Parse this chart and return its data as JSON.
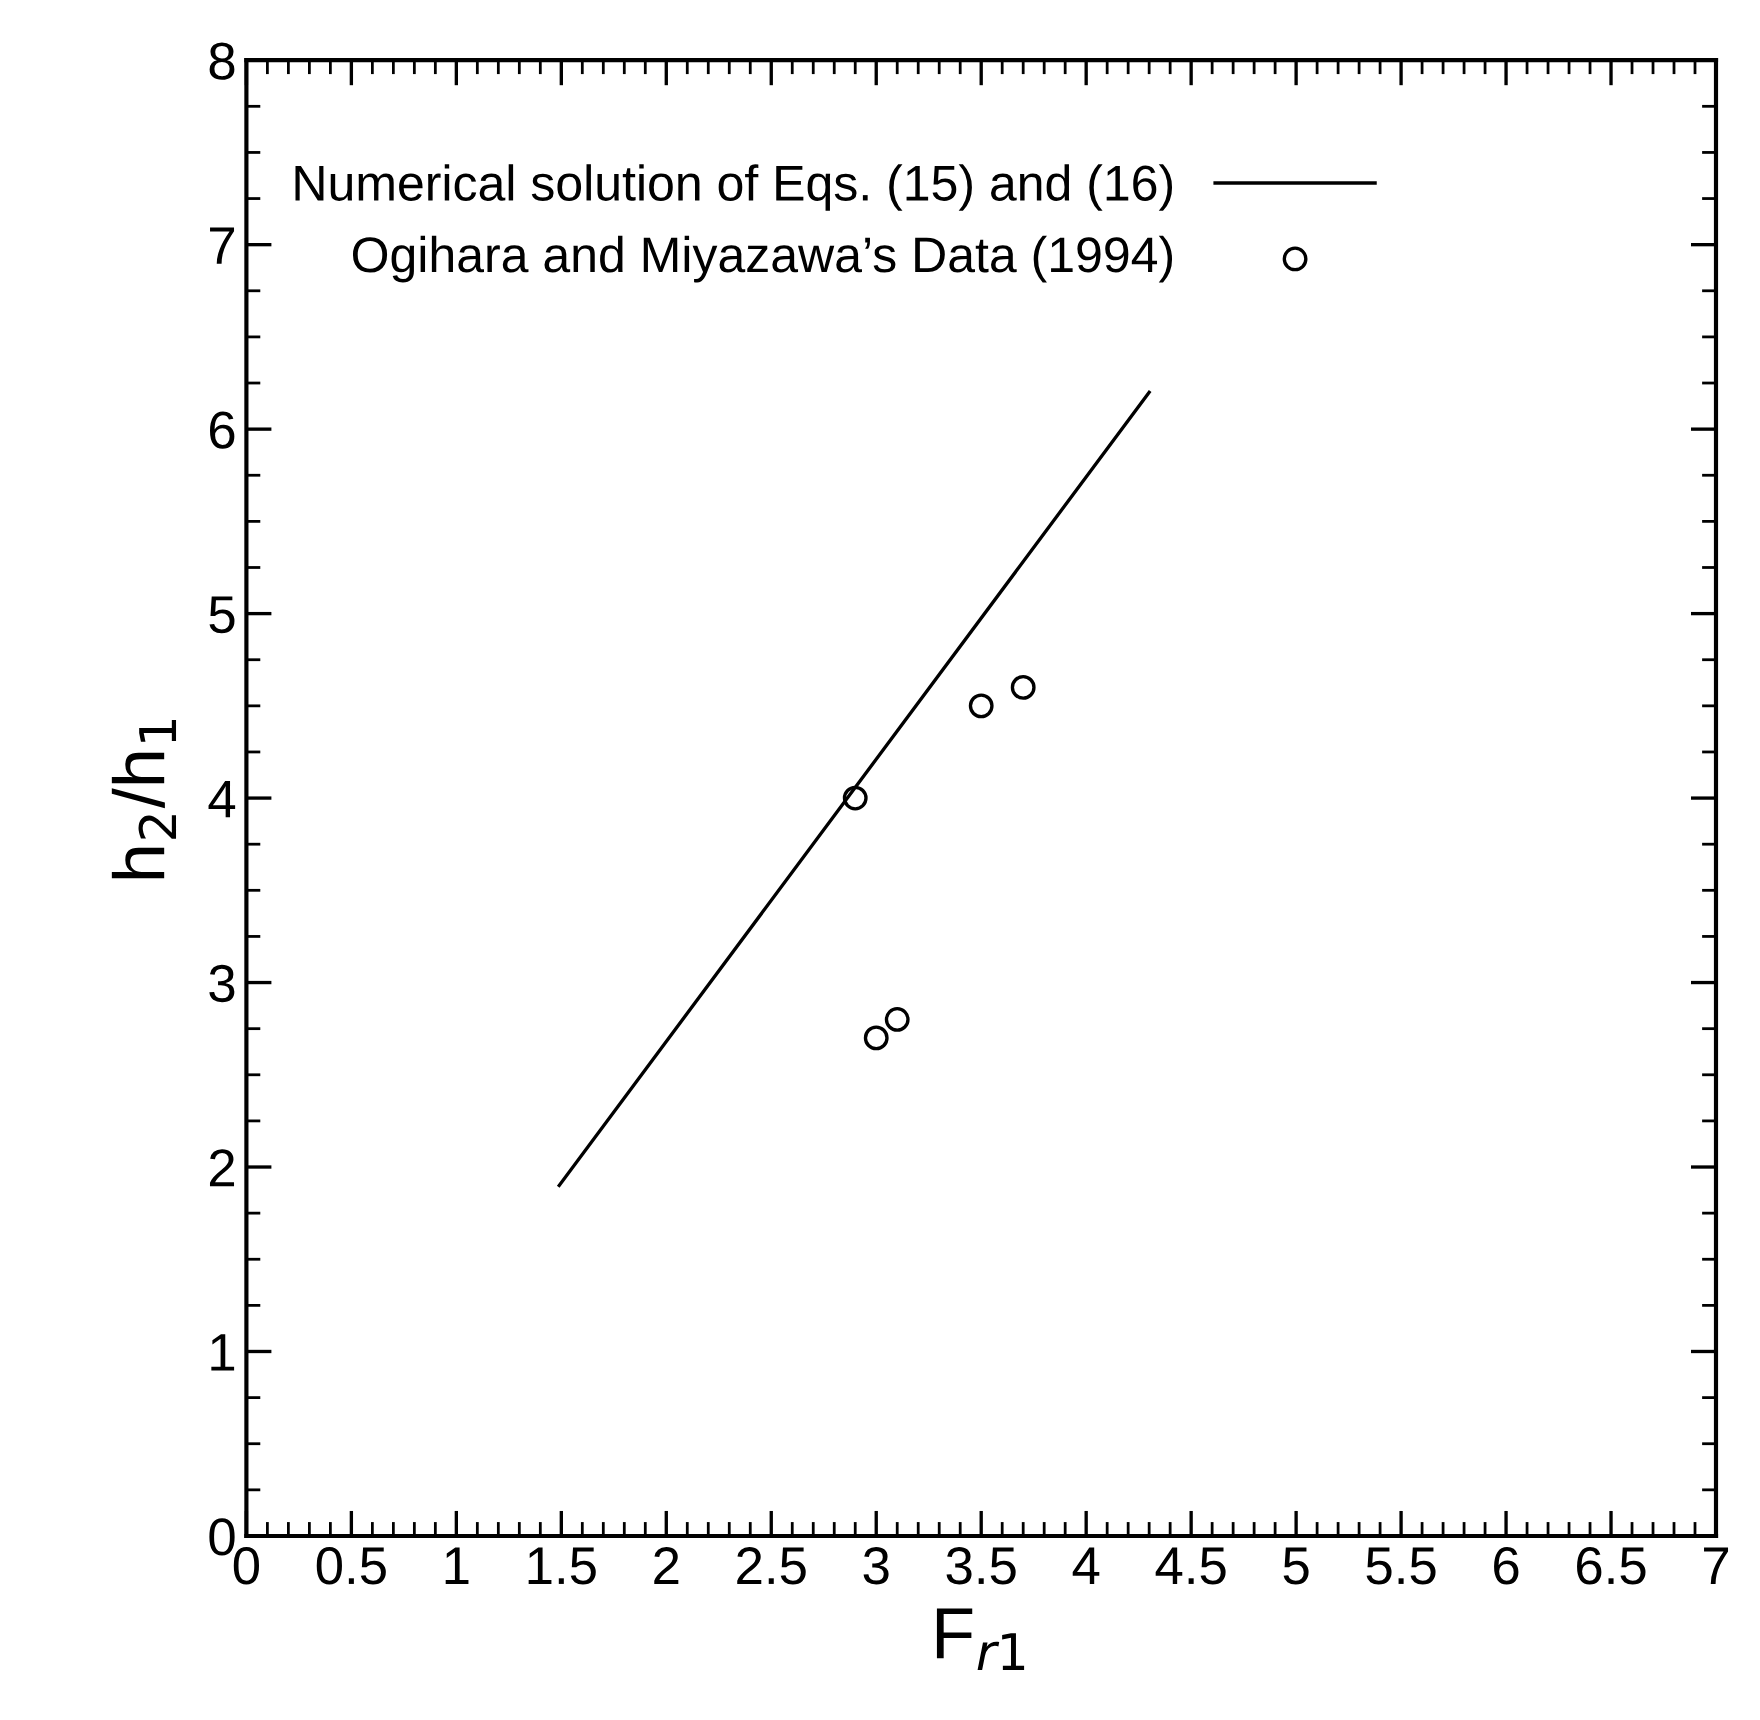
{
  "chart_data": {
    "type": "scatter",
    "xlabel": "F$_{r1}$",
    "ylabel": "h$_{2}$/h$_{1}$",
    "xlim": [
      0,
      7
    ],
    "ylim": [
      0,
      8
    ],
    "xticks": [
      0,
      0.5,
      1,
      1.5,
      2,
      2.5,
      3,
      3.5,
      4,
      4.5,
      5,
      5.5,
      6,
      6.5,
      7
    ],
    "yticks": [
      0,
      1,
      2,
      3,
      4,
      5,
      6,
      7,
      8
    ],
    "grid": false,
    "legend": "top left",
    "series": [
      {
        "name": "Numerical solution of Eqs. (15) and (16)",
        "type": "line",
        "color": "#000000",
        "marker": "none",
        "line_style": "solid",
        "x": [
          1.49,
          4.3
        ],
        "values": [
          1.9,
          6.2
        ]
      },
      {
        "name": "Ogihara and Miyazawa’s Data (1994)",
        "color": "#000000",
        "marker": "circle",
        "x": [
          2.9,
          3.5,
          3.7,
          3.0,
          3.1
        ],
        "values": [
          4.0,
          4.5,
          4.6,
          2.7,
          2.8
        ]
      }
    ]
  }
}
